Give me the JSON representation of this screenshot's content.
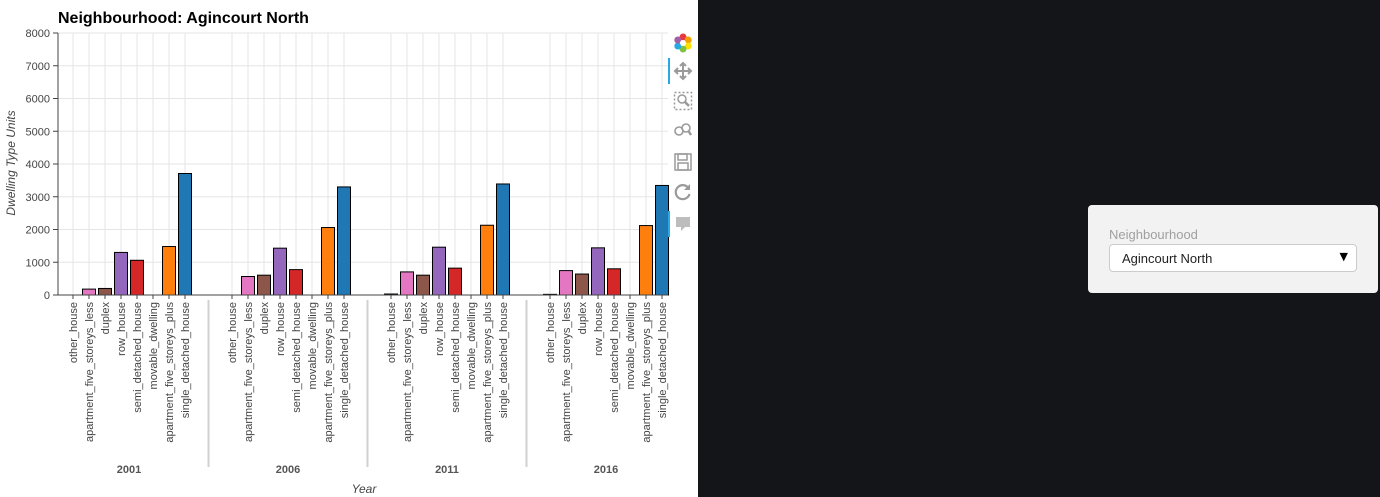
{
  "chart_data": {
    "type": "bar",
    "title": "Neighbourhood: Agincourt North",
    "xlabel": "Year",
    "ylabel": "Dwelling Type Units",
    "ylim": [
      0,
      8000
    ],
    "yticks": [
      0,
      1000,
      2000,
      3000,
      4000,
      5000,
      6000,
      7000,
      8000
    ],
    "grid": true,
    "groups": [
      "2001",
      "2006",
      "2011",
      "2016"
    ],
    "categories": [
      "other_house",
      "apartment_five_storeys_less",
      "duplex",
      "row_house",
      "semi_detached_house",
      "movable_dwelling",
      "apartment_five_storeys_plus",
      "single_detached_house"
    ],
    "colors": [
      "#7f7f7f",
      "#e377c2",
      "#8c564b",
      "#9467bd",
      "#d62728",
      "#bcbd22",
      "#ff7f0e",
      "#1f77b4"
    ],
    "values": [
      [
        0,
        180,
        200,
        1300,
        1060,
        0,
        1480,
        3710
      ],
      [
        0,
        565,
        605,
        1430,
        775,
        0,
        2060,
        3300
      ],
      [
        30,
        705,
        605,
        1460,
        820,
        0,
        2130,
        3390
      ],
      [
        20,
        745,
        640,
        1440,
        800,
        0,
        2120,
        3345
      ]
    ]
  },
  "toolbar": {
    "tools": [
      {
        "name": "bokeh-logo-icon",
        "active": false
      },
      {
        "name": "pan-tool-icon",
        "active": true
      },
      {
        "name": "box-zoom-tool-icon",
        "active": false
      },
      {
        "name": "wheel-zoom-tool-icon",
        "active": false
      },
      {
        "name": "save-tool-icon",
        "active": false
      },
      {
        "name": "reset-tool-icon",
        "active": false
      },
      {
        "name": "hover-tool-icon",
        "active": true
      }
    ]
  },
  "widget": {
    "label": "Neighbourhood",
    "value": "Agincourt North"
  }
}
